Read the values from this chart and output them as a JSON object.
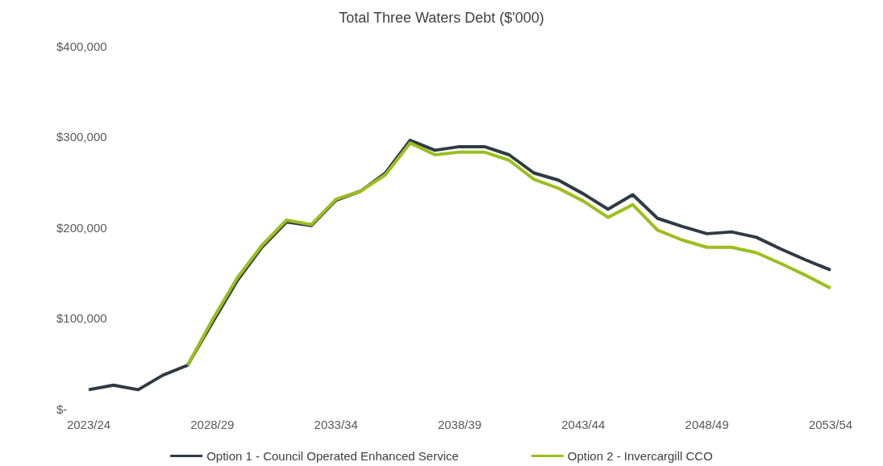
{
  "chart_data": {
    "type": "line",
    "title": "Total Three Waters Debt ($'000)",
    "categories": [
      "2023/24",
      null,
      null,
      null,
      null,
      "2028/29",
      null,
      null,
      null,
      null,
      "2033/34",
      null,
      null,
      null,
      null,
      "2038/39",
      null,
      null,
      null,
      null,
      "2043/44",
      null,
      null,
      null,
      null,
      "2048/49",
      null,
      null,
      null,
      null,
      "2053/54"
    ],
    "series": [
      {
        "name": "Option 1 - Council Operated Enhanced Service",
        "color": "#2e3b45",
        "values": [
          21000,
          26000,
          21000,
          37000,
          48000,
          95000,
          141000,
          178000,
          206000,
          202000,
          230000,
          240000,
          260000,
          296000,
          285000,
          289000,
          289000,
          280000,
          260000,
          252000,
          237000,
          220000,
          236000,
          210000,
          201000,
          193000,
          195000,
          189000,
          176000,
          164000,
          153000
        ]
      },
      {
        "name": "Option 2 - Invercargill CCO",
        "color": "#9dbe1e",
        "values": [
          null,
          null,
          null,
          null,
          48000,
          98000,
          144000,
          180000,
          208000,
          203000,
          231000,
          240000,
          258000,
          293000,
          280000,
          283000,
          283000,
          274000,
          253000,
          243000,
          229000,
          211000,
          225000,
          197000,
          186000,
          178000,
          178000,
          172000,
          160000,
          147000,
          133000
        ]
      }
    ],
    "ylim": [
      0,
      400000
    ],
    "yticks": [
      {
        "value": 0,
        "label": "$-"
      },
      {
        "value": 100000,
        "label": "$100,000"
      },
      {
        "value": 200000,
        "label": "$200,000"
      },
      {
        "value": 300000,
        "label": "$300,000"
      },
      {
        "value": 400000,
        "label": "$400,000"
      }
    ],
    "grid": false,
    "legend": "bottom",
    "marker": "none",
    "line_style": "solid"
  }
}
